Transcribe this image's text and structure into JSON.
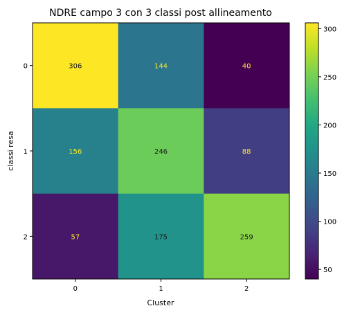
{
  "chart_data": {
    "type": "heatmap",
    "title": "NDRE campo 3 con 3 classi post allineamento",
    "xlabel": "Cluster",
    "ylabel": "classi resa",
    "x_categories": [
      "0",
      "1",
      "2"
    ],
    "y_categories": [
      "0",
      "1",
      "2"
    ],
    "values": [
      [
        306,
        144,
        40
      ],
      [
        156,
        246,
        88
      ],
      [
        57,
        175,
        259
      ]
    ],
    "colormap": "viridis",
    "color_range": [
      40,
      306
    ],
    "colorbar_ticks": [
      "300",
      "250",
      "200",
      "150",
      "100",
      "50"
    ],
    "colorbar_tick_values": [
      300,
      250,
      200,
      150,
      100,
      50
    ],
    "grid": false
  }
}
